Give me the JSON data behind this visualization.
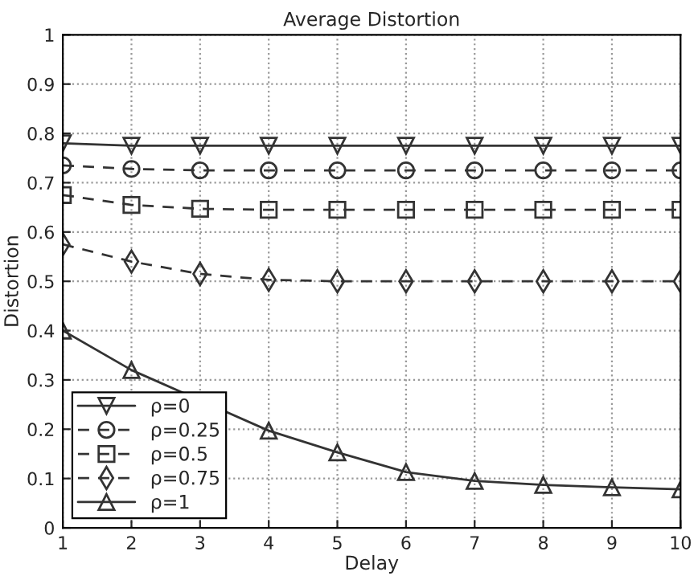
{
  "chart_data": {
    "type": "line",
    "title": "Average Distortion",
    "xlabel": "Delay",
    "ylabel": "Distortion",
    "x": [
      1,
      2,
      3,
      4,
      5,
      6,
      7,
      8,
      9,
      10
    ],
    "series": [
      {
        "name": "ρ=0",
        "color": "#333333",
        "marker": "triangle_down",
        "line_style": "solid",
        "values": [
          0.78,
          0.775,
          0.775,
          0.775,
          0.775,
          0.775,
          0.775,
          0.775,
          0.775,
          0.775
        ]
      },
      {
        "name": "ρ=0.25",
        "color": "#333333",
        "marker": "circle",
        "line_style": "dashed",
        "values": [
          0.735,
          0.728,
          0.725,
          0.725,
          0.725,
          0.725,
          0.725,
          0.725,
          0.725,
          0.725
        ]
      },
      {
        "name": "ρ=0.5",
        "color": "#333333",
        "marker": "square",
        "line_style": "dashed",
        "values": [
          0.675,
          0.655,
          0.647,
          0.645,
          0.645,
          0.645,
          0.645,
          0.645,
          0.645,
          0.645
        ]
      },
      {
        "name": "ρ=0.75",
        "color": "#333333",
        "marker": "diamond",
        "line_style": "dashed",
        "values": [
          0.575,
          0.54,
          0.515,
          0.503,
          0.5,
          0.5,
          0.5,
          0.5,
          0.5,
          0.5
        ]
      },
      {
        "name": "ρ=1",
        "color": "#333333",
        "marker": "triangle",
        "line_style": "solid",
        "values": [
          0.4,
          0.32,
          null,
          0.197,
          0.153,
          0.113,
          0.095,
          0.087,
          0.082,
          0.078
        ]
      }
    ],
    "xlim": [
      1,
      10
    ],
    "xticks": [
      1,
      2,
      3,
      4,
      5,
      6,
      7,
      8,
      9,
      10
    ],
    "ylim": [
      0,
      1
    ],
    "yticks": [
      0,
      0.1,
      0.2,
      0.3,
      0.4,
      0.5,
      0.6,
      0.7,
      0.8,
      0.9,
      1
    ],
    "grid": true,
    "legend": "bottom left"
  }
}
